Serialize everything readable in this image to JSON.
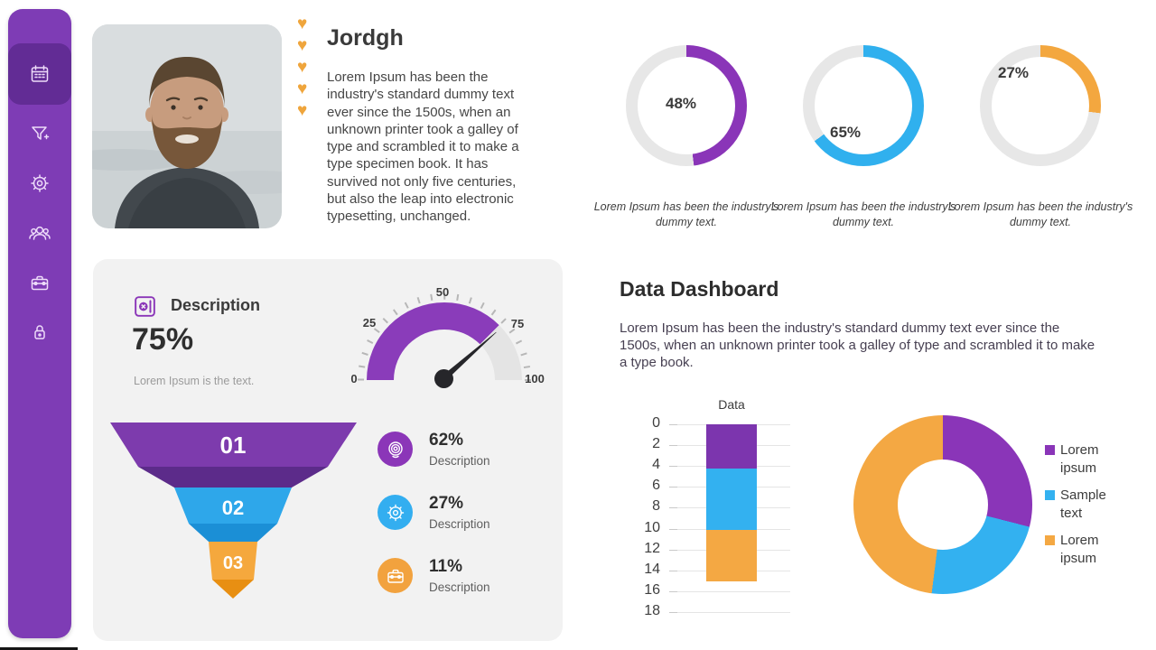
{
  "sidebar": {
    "color": "#7e3cb5",
    "active_color": "#622c95",
    "items": [
      {
        "icon": "calendar-icon",
        "active": true
      },
      {
        "icon": "filter-plus-icon",
        "active": false
      },
      {
        "icon": "gear-icon",
        "active": false
      },
      {
        "icon": "users-icon",
        "active": false
      },
      {
        "icon": "briefcase-icon",
        "active": false
      },
      {
        "icon": "lock-icon",
        "active": false
      }
    ]
  },
  "profile": {
    "name": "Jordgh",
    "rating_hearts": 5,
    "heart_color": "#efa53c",
    "bio": "Lorem Ipsum has been the\nindustry's standard dummy text\never since the 1500s, when an\nunknown printer took a galley of\ntype and scrambled it to make a\ntype specimen book. It has\nsurvived not only five centuries,\nbut also the leap into electronic\ntypesetting, unchanged."
  },
  "description_card": {
    "icon": "safe-icon",
    "title": "Description",
    "value": "75%",
    "subtitle": "Lorem Ipsum is the text.",
    "background": "#f2f2f2"
  },
  "stats": [
    {
      "icon": "target-icon",
      "value": "62%",
      "label": "Description",
      "color": "#8b36b8"
    },
    {
      "icon": "gear-icon",
      "value": "27%",
      "label": "Description",
      "color": "#33aef0"
    },
    {
      "icon": "briefcase-icon",
      "value": "11%",
      "label": "Description",
      "color": "#f2a23e"
    }
  ],
  "dashboard": {
    "title": "Data Dashboard",
    "text": "Lorem Ipsum has been the industry's standard dummy text ever since the 1500s, when an unknown printer took a galley of type and scrambled it to make a type book."
  },
  "chart_data": [
    {
      "type": "donut",
      "subtype": "progress-ring",
      "value": 48,
      "label": "48%",
      "color": "#8a35b8",
      "track": "#e7e7e7",
      "caption": "Lorem Ipsum has been the industry's dummy text."
    },
    {
      "type": "donut",
      "subtype": "progress-ring",
      "value": 65,
      "label": "65%",
      "color": "#30b0ee",
      "track": "#e7e7e7",
      "caption": "Lorem Ipsum has been the industry's dummy text."
    },
    {
      "type": "donut",
      "subtype": "progress-ring",
      "value": 27,
      "label": "27%",
      "color": "#f3a73f",
      "track": "#e7e7e7",
      "caption": "Lorem Ipsum has been the industry's dummy text."
    },
    {
      "type": "gauge",
      "min": 0,
      "max": 100,
      "value": 75,
      "needle_value": 77,
      "ticks": [
        "0",
        "25",
        "50",
        "75",
        "100"
      ],
      "color": "#8a3cba",
      "track": "#e4e4e4"
    },
    {
      "type": "funnel",
      "stages": [
        "01",
        "02",
        "03"
      ],
      "colors": [
        "#7d3bad",
        "#2ea7ea",
        "#f5a83d"
      ],
      "shades": [
        "#5c2b8a",
        "#1b8fd6",
        "#e88f12"
      ]
    },
    {
      "type": "bar",
      "subtype": "stacked-column",
      "title": "Data",
      "categories": [
        "Data"
      ],
      "series": [
        {
          "name": "Lorem ipsum",
          "color": "#7c35ae",
          "values": [
            4.2
          ]
        },
        {
          "name": "Sample text",
          "color": "#33b1f0",
          "values": [
            5.9
          ]
        },
        {
          "name": "Lorem ipsum",
          "color": "#f4a843",
          "values": [
            5.0
          ]
        }
      ],
      "ylim": [
        0,
        18
      ],
      "yticks": [
        0,
        2,
        4,
        6,
        8,
        10,
        12,
        14,
        16,
        18
      ],
      "y_inverted": true,
      "grid": true
    },
    {
      "type": "pie",
      "subtype": "donut",
      "labels": [
        "Lorem ipsum",
        "Sample text",
        "Lorem ipsum"
      ],
      "values": [
        29,
        23,
        48
      ],
      "colors": [
        "#8a35b8",
        "#33b1f0",
        "#f4a843"
      ],
      "legend_position": "right"
    }
  ]
}
